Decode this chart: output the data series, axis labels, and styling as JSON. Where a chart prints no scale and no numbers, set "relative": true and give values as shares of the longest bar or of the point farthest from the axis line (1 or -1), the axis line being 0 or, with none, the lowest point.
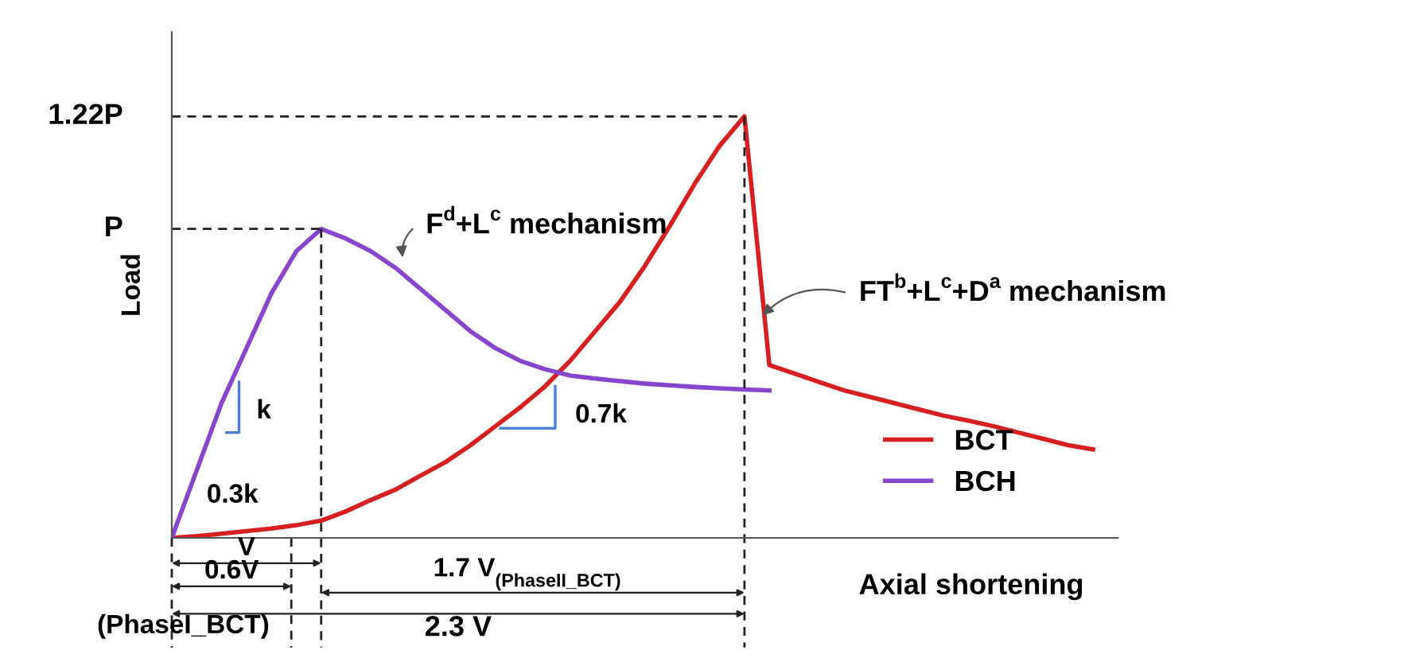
{
  "chart_data": {
    "type": "line",
    "relative": true,
    "ylabel": "Load",
    "xlabel": "Axial shortening",
    "legend": "bottom right",
    "marker": "none",
    "line_style": "solid",
    "categories": [
      null,
      null,
      null,
      null,
      null,
      null,
      null,
      null,
      null,
      null,
      null,
      null,
      null,
      null,
      null,
      null,
      null,
      null,
      null,
      null,
      null,
      null,
      null,
      null,
      null,
      null,
      null,
      null,
      null,
      null,
      null,
      null,
      null,
      null,
      null,
      null,
      null,
      null
    ],
    "series": [
      {
        "name": "BCT",
        "color": "#d81f1f",
        "values": [
          0,
          0.004,
          0.01,
          0.016,
          0.022,
          0.03,
          0.041,
          0.063,
          0.09,
          0.115,
          0.148,
          0.18,
          0.22,
          0.265,
          0.31,
          0.36,
          0.42,
          0.49,
          0.56,
          0.645,
          0.74,
          0.84,
          0.93,
          1.0,
          0.41,
          0.39,
          0.37,
          0.35,
          0.335,
          0.32,
          0.305,
          0.29,
          0.278,
          0.265,
          0.25,
          0.235,
          0.22,
          0.21
        ]
      },
      {
        "name": "BCH",
        "color": "#8844cc",
        "values": [
          0,
          0.16,
          0.32,
          0.45,
          0.58,
          0.68,
          0.733,
          0.71,
          0.68,
          0.64,
          0.59,
          0.54,
          0.49,
          0.45,
          0.42,
          0.4,
          0.385,
          0.378,
          0.372,
          0.366,
          0.362,
          0.358,
          0.355,
          0.352,
          0.35,
          null,
          null,
          null,
          null,
          null,
          null,
          null,
          null,
          null,
          null,
          null,
          null,
          null
        ]
      }
    ],
    "annotations": [
      "1.22P",
      "P",
      "F$^{d}$+L$^{c}$ mechanism",
      "FT$^{b}$+L$^{c}$+D$^{a}$ mechanism",
      "k",
      "0.3k",
      "0.7k",
      "V",
      "0.6V",
      "(PhaseI_BCT)",
      "1.7 V$_{(PhaseII_BCT)}$",
      "2.3 V"
    ]
  }
}
